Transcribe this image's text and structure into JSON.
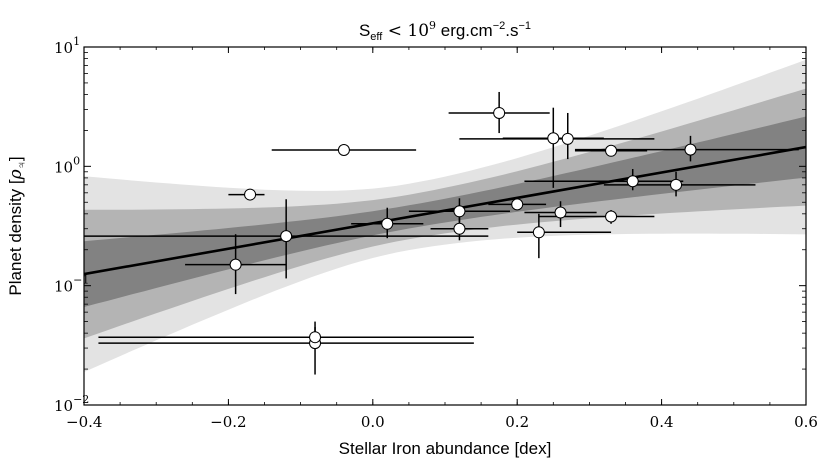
{
  "chart_data": {
    "type": "scatter",
    "title": {
      "prefix": "S",
      "sub": "eff",
      "relation": " < 10",
      "exp": "9",
      "unit": " erg.cm",
      "unit_exp1": "−2",
      "unit_mid": ".s",
      "unit_exp2": "−1"
    },
    "xlabel": "Stellar Iron abundance [dex]",
    "ylabel": {
      "text": "Planet density [",
      "symbol": "ρ",
      "sub": "♃",
      "close": "]"
    },
    "xlim": [
      -0.4,
      0.6
    ],
    "ylim": [
      0.01,
      10
    ],
    "yscale": "log",
    "x_ticks": [
      {
        "value": -0.4,
        "label": "−0.4"
      },
      {
        "value": -0.2,
        "label": "−0.2"
      },
      {
        "value": 0.0,
        "label": "0.0"
      },
      {
        "value": 0.2,
        "label": "0.2"
      },
      {
        "value": 0.4,
        "label": "0.4"
      },
      {
        "value": 0.6,
        "label": "0.6"
      }
    ],
    "y_ticks": [
      {
        "value": 10,
        "base": "10",
        "exp": "1"
      },
      {
        "value": 1,
        "base": "10",
        "exp": "0"
      },
      {
        "value": 0.1,
        "base": "10",
        "exp": "−1"
      },
      {
        "value": 0.01,
        "base": "10",
        "exp": "−2"
      }
    ],
    "fit_line": {
      "x0": -0.4,
      "y0": 0.125,
      "x1": 0.6,
      "y1": 1.45
    },
    "bands": [
      {
        "name": "3-sigma",
        "color": "#e3e3e3",
        "top_left": 0.83,
        "top_right": 8.0,
        "bottom_left": 0.019,
        "bottom_right": 0.275,
        "pivot_x": 0.05,
        "pivot_y": 0.38
      },
      {
        "name": "2-sigma",
        "color": "#b4b4b4",
        "top_left": 0.43,
        "top_right": 4.5,
        "bottom_left": 0.036,
        "bottom_right": 0.47,
        "pivot_x": 0.05,
        "pivot_y": 0.38
      },
      {
        "name": "1-sigma",
        "color": "#828282",
        "top_left": 0.235,
        "top_right": 2.6,
        "bottom_left": 0.066,
        "bottom_right": 0.8,
        "pivot_x": 0.05,
        "pivot_y": 0.38
      }
    ],
    "points": [
      {
        "x": -0.17,
        "y": 0.58,
        "xerr": [
          0.03,
          0.02
        ],
        "yerr": [
          0.05,
          0.05
        ]
      },
      {
        "x": -0.04,
        "y": 1.37,
        "xerr": [
          0.1,
          0.1
        ],
        "yerr": [
          0.12,
          0.12
        ]
      },
      {
        "x": -0.19,
        "y": 0.15,
        "xerr": [
          0.07,
          0.07
        ],
        "yerr": [
          0.065,
          0.12
        ]
      },
      {
        "x": -0.12,
        "y": 0.26,
        "xerr": [
          0.28,
          0.28
        ],
        "yerr": [
          0.145,
          0.27
        ]
      },
      {
        "x": 0.02,
        "y": 0.33,
        "xerr": [
          0.05,
          0.05
        ],
        "yerr": [
          0.08,
          0.12
        ]
      },
      {
        "x": -0.08,
        "y": 0.033,
        "xerr": [
          0.3,
          0.22
        ],
        "yerr": [
          0.015,
          0.012
        ]
      },
      {
        "x": -0.08,
        "y": 0.037,
        "xerr": [
          0.3,
          0.22
        ],
        "yerr": [
          0.005,
          0.013
        ]
      },
      {
        "x": 0.12,
        "y": 0.42,
        "xerr": [
          0.07,
          0.07
        ],
        "yerr": [
          0.08,
          0.12
        ]
      },
      {
        "x": 0.12,
        "y": 0.3,
        "xerr": [
          0.04,
          0.04
        ],
        "yerr": [
          0.06,
          0.08
        ]
      },
      {
        "x": 0.175,
        "y": 2.8,
        "xerr": [
          0.07,
          0.07
        ],
        "yerr": [
          0.9,
          1.4
        ]
      },
      {
        "x": 0.2,
        "y": 0.48,
        "xerr": [
          0.04,
          0.04
        ],
        "yerr": [
          0.05,
          0.05
        ]
      },
      {
        "x": 0.23,
        "y": 0.28,
        "xerr": [
          0.03,
          0.1
        ],
        "yerr": [
          0.11,
          0.12
        ]
      },
      {
        "x": 0.25,
        "y": 1.72,
        "xerr": [
          0.07,
          0.07
        ],
        "yerr": [
          1.06,
          1.38
        ]
      },
      {
        "x": 0.26,
        "y": 0.41,
        "xerr": [
          0.05,
          0.05
        ],
        "yerr": [
          0.1,
          0.1
        ]
      },
      {
        "x": 0.27,
        "y": 1.7,
        "xerr": [
          0.15,
          0.12
        ],
        "yerr": [
          0.55,
          1.1
        ]
      },
      {
        "x": 0.33,
        "y": 1.35,
        "xerr": [
          0.05,
          0.05
        ],
        "yerr": [
          0.1,
          0.1
        ]
      },
      {
        "x": 0.33,
        "y": 0.38,
        "xerr": [
          0.1,
          0.06
        ],
        "yerr": [
          0.05,
          0.05
        ]
      },
      {
        "x": 0.36,
        "y": 0.75,
        "xerr": [
          0.15,
          0.07
        ],
        "yerr": [
          0.12,
          0.2
        ]
      },
      {
        "x": 0.42,
        "y": 0.7,
        "xerr": [
          0.1,
          0.11
        ],
        "yerr": [
          0.14,
          0.2
        ]
      },
      {
        "x": 0.44,
        "y": 1.38,
        "xerr": [
          0.16,
          0.15
        ],
        "yerr": [
          0.28,
          0.42
        ]
      }
    ]
  }
}
